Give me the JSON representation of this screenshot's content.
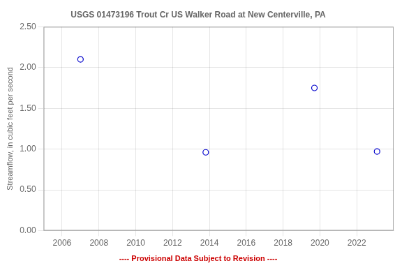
{
  "chart_data": {
    "type": "scatter",
    "title": "USGS 01473196 Trout Cr US Walker Road at New Centerville, PA",
    "ylabel": "Streamflow, in cubic feet per second",
    "annotations": [
      {
        "text": "---- Provisional Data Subject to Revision ----",
        "color": "#cc0000"
      }
    ],
    "x": [
      2007.0,
      2013.8,
      2019.7,
      2023.1
    ],
    "values": [
      2.1,
      0.96,
      1.75,
      0.97
    ],
    "color": "#0000cc",
    "marker": "circle",
    "xlim": [
      2005.0,
      2024.0
    ],
    "ylim": [
      0.0,
      2.5
    ],
    "xticks": [
      2006,
      2008,
      2010,
      2012,
      2014,
      2016,
      2018,
      2020,
      2022
    ],
    "yticks": [
      {
        "value": 0.0,
        "label": "0.00"
      },
      {
        "value": 0.5,
        "label": "0.50"
      },
      {
        "value": 1.0,
        "label": "1.00"
      },
      {
        "value": 1.5,
        "label": "1.50"
      },
      {
        "value": 2.0,
        "label": "2.00"
      },
      {
        "value": 2.5,
        "label": "2.50"
      }
    ],
    "grid": true
  }
}
